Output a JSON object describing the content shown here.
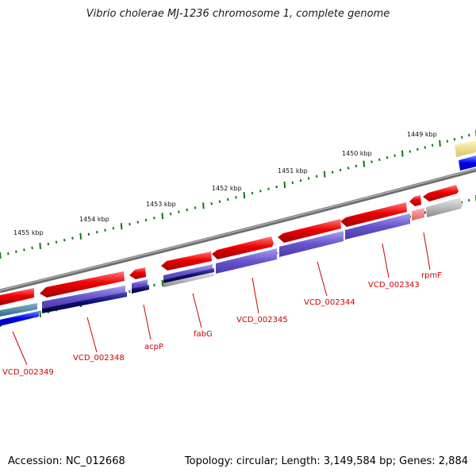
{
  "title": "Vibrio cholerae MJ-1236 chromosome 1, complete genome",
  "footer": {
    "accession": "Accession: NC_012668",
    "summary": "Topology: circular; Length: 3,149,584 bp; Genes: 2,884"
  },
  "colors": {
    "backbone": "#808080",
    "gene_forward": "#ee0000",
    "cds_blue": "#6655cc",
    "cds_dark": "#0b0b70",
    "rna_light": "#bbbbbb",
    "label_red": "#cc0000",
    "ticks": "#117711"
  },
  "ruler": [
    "1455 kbp",
    "1454 kbp",
    "1453 kbp",
    "1452 kbp",
    "1451 kbp",
    "1450 kbp",
    "1449 kbp"
  ],
  "genes": [
    "VCD_002349",
    "VCD_002348",
    "acpP",
    "fabG",
    "VCD_002345",
    "VCD_002344",
    "VCD_002343",
    "rpmF"
  ]
}
